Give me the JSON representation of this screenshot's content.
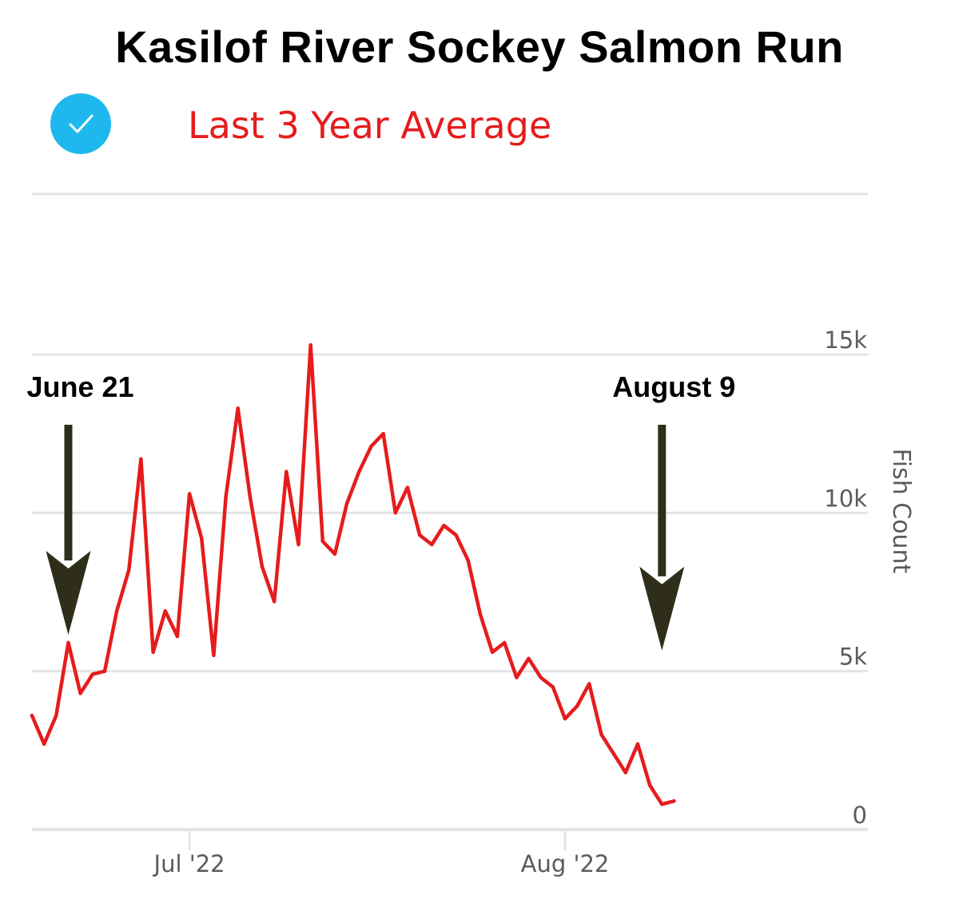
{
  "chart_data": {
    "type": "line",
    "title": "Kasilof River Sockey Salmon Run",
    "ylabel": "Fish Count",
    "ylim": [
      0,
      15000
    ],
    "yticks": [
      {
        "value": 0,
        "label": "0"
      },
      {
        "value": 5000,
        "label": "5k"
      },
      {
        "value": 10000,
        "label": "10k"
      },
      {
        "value": 15000,
        "label": "15k"
      }
    ],
    "xticks": [
      {
        "date": "2022-07-01",
        "label": "Jul '22"
      },
      {
        "date": "2022-08-01",
        "label": "Aug '22"
      }
    ],
    "xrange": [
      "2022-06-18",
      "2022-08-26"
    ],
    "grid": true,
    "legend_placement": "top-left",
    "series": [
      {
        "name": "Last 3 Year Average",
        "color": "#e61c1c",
        "points": [
          [
            "2022-06-18",
            3600
          ],
          [
            "2022-06-19",
            2700
          ],
          [
            "2022-06-20",
            3600
          ],
          [
            "2022-06-21",
            5900
          ],
          [
            "2022-06-22",
            4300
          ],
          [
            "2022-06-23",
            4900
          ],
          [
            "2022-06-24",
            5000
          ],
          [
            "2022-06-25",
            6900
          ],
          [
            "2022-06-26",
            8200
          ],
          [
            "2022-06-27",
            11700
          ],
          [
            "2022-06-28",
            5600
          ],
          [
            "2022-06-29",
            6900
          ],
          [
            "2022-06-30",
            6100
          ],
          [
            "2022-07-01",
            10600
          ],
          [
            "2022-07-02",
            9200
          ],
          [
            "2022-07-03",
            5500
          ],
          [
            "2022-07-04",
            10500
          ],
          [
            "2022-07-05",
            13300
          ],
          [
            "2022-07-06",
            10500
          ],
          [
            "2022-07-07",
            8300
          ],
          [
            "2022-07-08",
            7200
          ],
          [
            "2022-07-09",
            11300
          ],
          [
            "2022-07-10",
            9000
          ],
          [
            "2022-07-11",
            15300
          ],
          [
            "2022-07-12",
            9100
          ],
          [
            "2022-07-13",
            8700
          ],
          [
            "2022-07-14",
            10300
          ],
          [
            "2022-07-15",
            11300
          ],
          [
            "2022-07-16",
            12100
          ],
          [
            "2022-07-17",
            12500
          ],
          [
            "2022-07-18",
            10000
          ],
          [
            "2022-07-19",
            10800
          ],
          [
            "2022-07-20",
            9300
          ],
          [
            "2022-07-21",
            9000
          ],
          [
            "2022-07-22",
            9600
          ],
          [
            "2022-07-23",
            9300
          ],
          [
            "2022-07-24",
            8500
          ],
          [
            "2022-07-25",
            6800
          ],
          [
            "2022-07-26",
            5600
          ],
          [
            "2022-07-27",
            5900
          ],
          [
            "2022-07-28",
            4800
          ],
          [
            "2022-07-29",
            5400
          ],
          [
            "2022-07-30",
            4800
          ],
          [
            "2022-07-31",
            4500
          ],
          [
            "2022-08-01",
            3500
          ],
          [
            "2022-08-02",
            3900
          ],
          [
            "2022-08-03",
            4600
          ],
          [
            "2022-08-04",
            3000
          ],
          [
            "2022-08-05",
            2400
          ],
          [
            "2022-08-06",
            1800
          ],
          [
            "2022-08-07",
            2700
          ],
          [
            "2022-08-08",
            1400
          ],
          [
            "2022-08-09",
            800
          ],
          [
            "2022-08-10",
            900
          ]
        ]
      }
    ],
    "annotations": [
      {
        "label": "June 21",
        "date": "2022-06-21",
        "value": 5900,
        "kind": "down-arrow"
      },
      {
        "label": "August 9",
        "date": "2022-08-09",
        "value": 5400,
        "kind": "down-arrow"
      }
    ]
  },
  "legend": {
    "label": "Last 3 Year Average",
    "checked": true,
    "check_color": "#1fb8ee"
  },
  "colors": {
    "line": "#e61c1c",
    "grid": "#e3e3e8",
    "axis_text": "#5b5b5b",
    "arrow": "#2e2e1a"
  }
}
